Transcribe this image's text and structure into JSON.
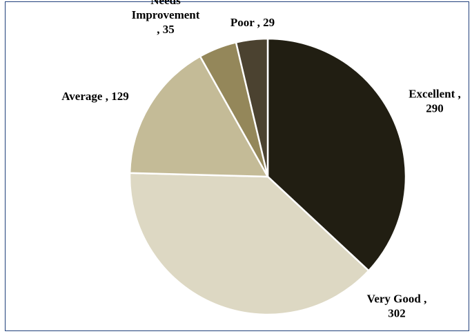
{
  "chart_data": {
    "type": "pie",
    "title": "",
    "legend": "none",
    "slices": [
      {
        "name": "Excellent",
        "value": 290,
        "label_lines": [
          "Excellent ,",
          "290"
        ],
        "color": "#211e12"
      },
      {
        "name": "Very Good",
        "value": 302,
        "label_lines": [
          "Very Good ,",
          "302"
        ],
        "color": "#ddd8c3"
      },
      {
        "name": "Average",
        "value": 129,
        "label_lines": [
          "Average , 129"
        ],
        "color": "#c4bb97"
      },
      {
        "name": "Needs Improvement",
        "value": 35,
        "label_lines": [
          "Needs",
          "Improvement",
          ", 35"
        ],
        "color": "#94875a"
      },
      {
        "name": "Poor",
        "value": 29,
        "label_lines": [
          "Poor , 29"
        ],
        "color": "#4b4230"
      }
    ]
  }
}
